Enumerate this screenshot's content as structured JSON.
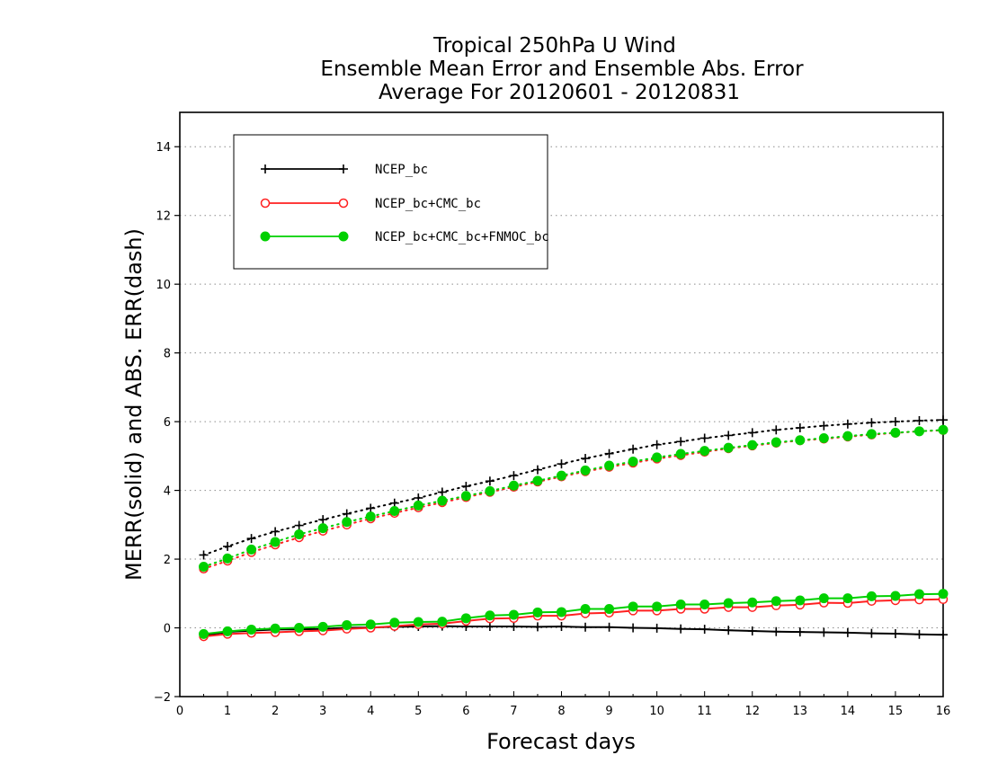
{
  "chart_data": {
    "type": "line",
    "title": [
      "Tropical 250hPa U Wind",
      "Ensemble Mean Error and Ensemble Abs. Error",
      "Average For 20120601 - 20120831"
    ],
    "xlabel": "Forecast days",
    "ylabel": "MERR(solid) and ABS. ERR(dash)",
    "xlim": [
      0,
      16
    ],
    "ylim": [
      -2,
      15
    ],
    "xticks": [
      0,
      1,
      2,
      3,
      4,
      5,
      6,
      7,
      8,
      9,
      10,
      11,
      12,
      13,
      14,
      15,
      16
    ],
    "yticks": [
      -2,
      0,
      2,
      4,
      6,
      8,
      10,
      12,
      14
    ],
    "grid": "horizontal dotted",
    "legend_position": "top-left",
    "x": [
      0.5,
      1,
      1.5,
      2,
      2.5,
      3,
      3.5,
      4,
      4.5,
      5,
      5.5,
      6,
      6.5,
      7,
      7.5,
      8,
      8.5,
      9,
      9.5,
      10,
      10.5,
      11,
      11.5,
      12,
      12.5,
      13,
      13.5,
      14,
      14.5,
      15,
      15.5,
      16
    ],
    "series": [
      {
        "name": "NCEP_bc",
        "color": "#000000",
        "marker": "plus",
        "merr": [
          -0.22,
          -0.12,
          -0.08,
          -0.05,
          -0.04,
          -0.03,
          0.0,
          0.01,
          0.03,
          0.04,
          0.05,
          0.04,
          0.04,
          0.04,
          0.03,
          0.04,
          0.02,
          0.02,
          0.0,
          -0.01,
          -0.03,
          -0.04,
          -0.07,
          -0.09,
          -0.11,
          -0.12,
          -0.13,
          -0.14,
          -0.16,
          -0.17,
          -0.19,
          -0.2
        ],
        "abs_err": [
          2.12,
          2.37,
          2.6,
          2.8,
          2.98,
          3.15,
          3.32,
          3.48,
          3.63,
          3.78,
          3.95,
          4.12,
          4.27,
          4.43,
          4.6,
          4.77,
          4.93,
          5.07,
          5.2,
          5.33,
          5.42,
          5.52,
          5.6,
          5.68,
          5.76,
          5.82,
          5.88,
          5.93,
          5.97,
          6.0,
          6.03,
          6.05
        ]
      },
      {
        "name": "NCEP_bc+CMC_bc",
        "color": "#ff2020",
        "marker": "open-circle",
        "merr": [
          -0.25,
          -0.18,
          -0.15,
          -0.13,
          -0.1,
          -0.08,
          -0.03,
          0.0,
          0.05,
          0.1,
          0.12,
          0.2,
          0.27,
          0.28,
          0.35,
          0.35,
          0.42,
          0.44,
          0.5,
          0.5,
          0.55,
          0.55,
          0.6,
          0.6,
          0.65,
          0.67,
          0.73,
          0.72,
          0.78,
          0.8,
          0.82,
          0.83
        ],
        "abs_err": [
          1.72,
          1.95,
          2.2,
          2.42,
          2.63,
          2.82,
          3.0,
          3.18,
          3.34,
          3.5,
          3.65,
          3.8,
          3.95,
          4.1,
          4.25,
          4.4,
          4.55,
          4.68,
          4.8,
          4.92,
          5.02,
          5.12,
          5.22,
          5.3,
          5.38,
          5.45,
          5.5,
          5.56,
          5.62,
          5.67,
          5.72,
          5.75
        ]
      },
      {
        "name": "NCEP_bc+CMC_bc+FNMOC_bc",
        "color": "#00d000",
        "marker": "filled-circle",
        "merr": [
          -0.18,
          -0.1,
          -0.05,
          -0.02,
          0.0,
          0.03,
          0.08,
          0.1,
          0.15,
          0.17,
          0.18,
          0.28,
          0.36,
          0.38,
          0.45,
          0.46,
          0.55,
          0.55,
          0.62,
          0.62,
          0.68,
          0.68,
          0.72,
          0.74,
          0.78,
          0.8,
          0.86,
          0.86,
          0.92,
          0.93,
          0.98,
          0.99
        ],
        "abs_err": [
          1.78,
          2.02,
          2.28,
          2.5,
          2.72,
          2.9,
          3.08,
          3.24,
          3.4,
          3.56,
          3.7,
          3.84,
          3.98,
          4.14,
          4.28,
          4.43,
          4.58,
          4.72,
          4.84,
          4.96,
          5.06,
          5.15,
          5.24,
          5.32,
          5.4,
          5.46,
          5.52,
          5.58,
          5.64,
          5.68,
          5.72,
          5.76
        ]
      }
    ]
  }
}
